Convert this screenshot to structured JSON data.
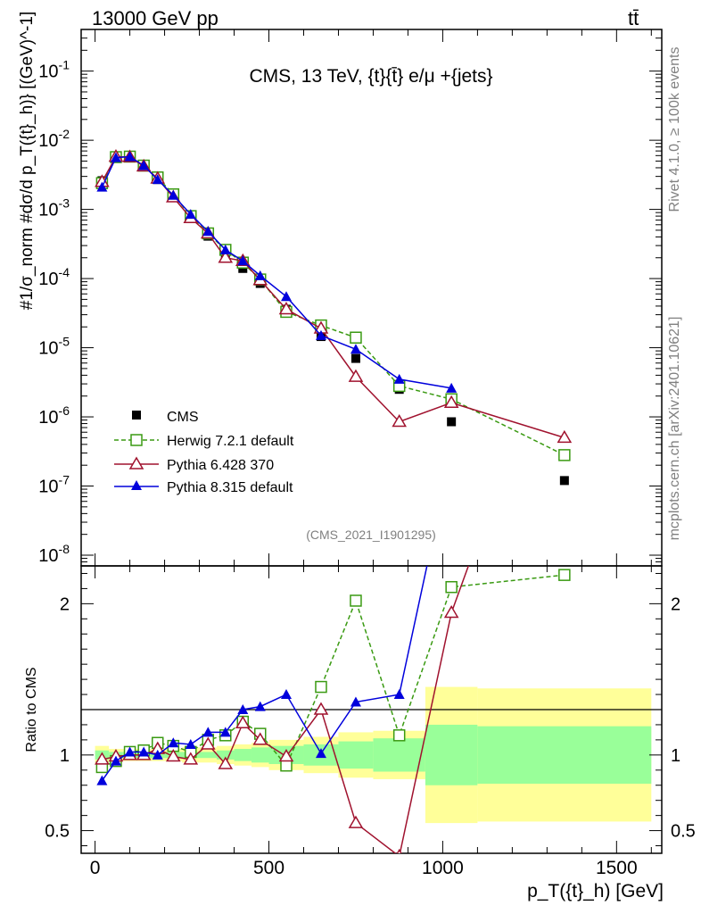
{
  "header": {
    "left": "13000 GeV pp",
    "right": "tt̄"
  },
  "side_labels": {
    "rivet": "Rivet 4.1.0, ≥ 100k events",
    "mcplots": "mcplots.cern.ch [arXiv:2401.10621]"
  },
  "colors": {
    "cms": "#000000",
    "herwig": "#3a9a12",
    "pythia6": "#a0122e",
    "pythia8": "#0000dc",
    "band_green": "#99ff99",
    "band_yellow": "#ffff99"
  },
  "chart_data": [
    {
      "type": "line",
      "title": "CMS, 13 TeV, {t}{t̄} e/μ +{jets}",
      "watermark": "(CMS_2021_I1901295)",
      "xlabel": "p_T({t}_h) [GeV]",
      "ylabel": "#1/σ_norm #dσ/d p_T({t}_h)} [(GeV)^-1]",
      "yscale": "log",
      "xlim": [
        -40,
        1630
      ],
      "ylim": [
        7e-09,
        0.4
      ],
      "ytick_labels": [
        "10^-8",
        "10^-7",
        "10^-6",
        "10^-5",
        "10^-4",
        "10^-3",
        "10^-2",
        "10^-1"
      ],
      "series": [
        {
          "name": "CMS",
          "style": "square-filled",
          "x": [
            20,
            60,
            100,
            140,
            180,
            225,
            275,
            325,
            375,
            425,
            475,
            550,
            650,
            750,
            875,
            1025,
            1350
          ],
          "values": [
            0.0026,
            0.0059,
            0.0057,
            0.0042,
            0.0027,
            0.00155,
            0.00078,
            0.00041,
            0.00023,
            0.00014,
            8.5e-05,
            3.6e-05,
            1.45e-05,
            7e-06,
            2.5e-06,
            8.5e-07,
            1.2e-07
          ]
        },
        {
          "name": "Herwig 7.2.1 default",
          "style": "square-open-dashed",
          "x": [
            20,
            60,
            100,
            140,
            180,
            225,
            275,
            325,
            375,
            425,
            475,
            550,
            650,
            750,
            875,
            1025,
            1350
          ],
          "values": [
            0.0024,
            0.0057,
            0.0058,
            0.0043,
            0.0029,
            0.00165,
            0.0008,
            0.00045,
            0.00026,
            0.00017,
            9.7e-05,
            3.3e-05,
            2.1e-05,
            1.4e-05,
            2.8e-06,
            1.8e-06,
            2.8e-07
          ]
        },
        {
          "name": "Pythia 6.428 370",
          "style": "triangle-open",
          "x": [
            20,
            60,
            100,
            140,
            180,
            225,
            275,
            325,
            375,
            425,
            475,
            550,
            650,
            750,
            875,
            1025,
            1350
          ],
          "values": [
            0.0025,
            0.0058,
            0.0057,
            0.0042,
            0.0028,
            0.0015,
            0.00075,
            0.00045,
            0.0002,
            0.00018,
            9.5e-05,
            3.6e-05,
            1.9e-05,
            3.8e-06,
            8.5e-07,
            1.6e-06,
            5e-07
          ]
        },
        {
          "name": "Pythia 8.315 default",
          "style": "triangle-filled",
          "x": [
            20,
            60,
            100,
            140,
            180,
            225,
            275,
            325,
            375,
            425,
            475,
            550,
            650,
            750,
            875,
            1025
          ],
          "values": [
            0.0021,
            0.0056,
            0.0058,
            0.0043,
            0.0027,
            0.0016,
            0.00085,
            0.00048,
            0.00026,
            0.00018,
            0.00011,
            5.5e-05,
            1.5e-05,
            9.5e-06,
            3.5e-06,
            2.6e-06
          ]
        }
      ]
    },
    {
      "type": "line",
      "title": "",
      "xlabel": "p_T({t}_h) [GeV]",
      "ylabel": "Ratio to CMS",
      "xlim": [
        -40,
        1630
      ],
      "ylim": [
        0.35,
        2.25
      ],
      "xticks": [
        0,
        500,
        1000,
        1500
      ],
      "yticks": [
        0.5,
        1,
        2
      ],
      "bin_edges": [
        0,
        40,
        80,
        120,
        160,
        200,
        250,
        300,
        350,
        400,
        450,
        500,
        600,
        700,
        800,
        950,
        1100,
        1600
      ],
      "band_green_halfwidth": [
        0.03,
        0.02,
        0.02,
        0.02,
        0.02,
        0.02,
        0.02,
        0.02,
        0.03,
        0.04,
        0.05,
        0.06,
        0.07,
        0.09,
        0.11,
        0.2,
        0.19
      ],
      "band_yellow_halfwidth": [
        0.06,
        0.04,
        0.04,
        0.04,
        0.04,
        0.04,
        0.05,
        0.05,
        0.06,
        0.07,
        0.08,
        0.1,
        0.12,
        0.15,
        0.16,
        0.45,
        0.44
      ],
      "series": [
        {
          "name": "Herwig 7.2.1 default",
          "x": [
            20,
            60,
            100,
            140,
            180,
            225,
            275,
            325,
            375,
            425,
            475,
            550,
            650,
            750,
            875,
            1025,
            1350
          ],
          "values": [
            0.92,
            0.96,
            1.02,
            1.03,
            1.08,
            1.06,
            1.02,
            1.1,
            1.13,
            1.22,
            1.14,
            0.93,
            1.45,
            2.02,
            1.13,
            2.11,
            2.19
          ]
        },
        {
          "name": "Pythia 6.428 370",
          "x": [
            20,
            60,
            100,
            140,
            180,
            225,
            275,
            325,
            375,
            425,
            475,
            550,
            650,
            750,
            875,
            1025,
            1350
          ],
          "values": [
            0.97,
            0.99,
            1.0,
            1.0,
            1.04,
            0.99,
            0.97,
            1.07,
            0.94,
            1.21,
            1.1,
            0.99,
            1.3,
            0.55,
            0.33,
            1.94,
            4.0
          ]
        },
        {
          "name": "Pythia 8.315 default",
          "x": [
            20,
            60,
            100,
            140,
            180,
            225,
            275,
            325,
            375,
            425,
            475,
            550,
            650,
            750,
            875,
            1025
          ],
          "values": [
            0.83,
            0.96,
            1.02,
            1.02,
            1.0,
            1.08,
            1.07,
            1.15,
            1.15,
            1.3,
            1.32,
            1.4,
            1.01,
            1.35,
            1.4,
            3.0
          ]
        }
      ]
    }
  ]
}
